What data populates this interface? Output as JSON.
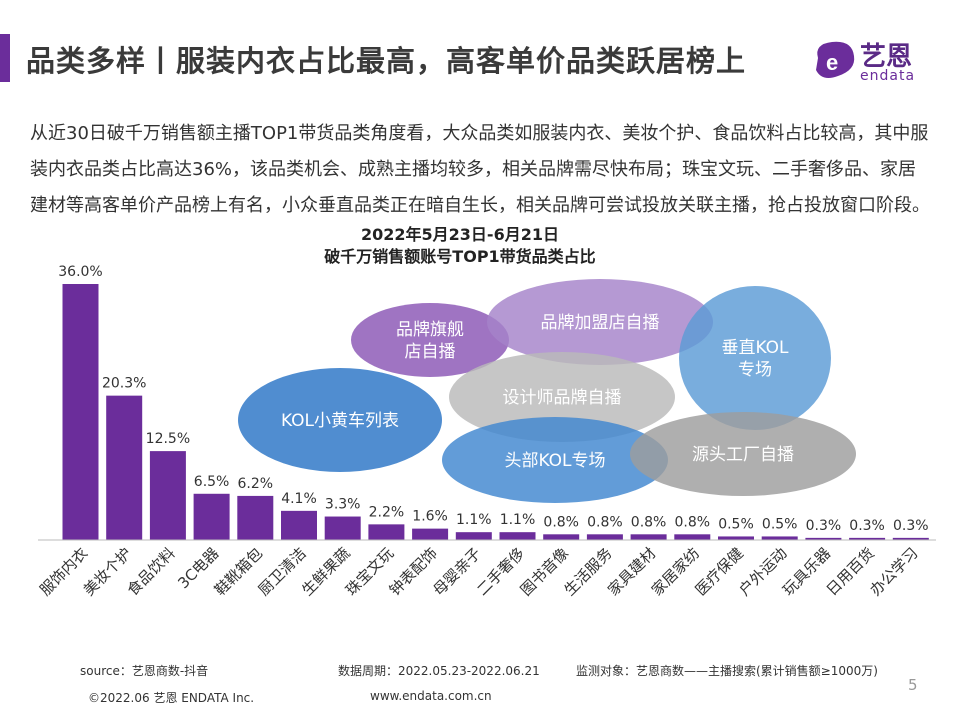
{
  "header": {
    "title": "品类多样丨服装内衣占比最高，高客单价品类跃居榜上",
    "logo_cn": "艺恩",
    "logo_en": "endata"
  },
  "paragraph": "从近30日破千万销售额主播TOP1带货品类角度看，大众品类如服装内衣、美妆个护、食品饮料占比较高，其中服装内衣品类占比高达36%，该品类机会、成熟主播均较多，相关品牌需尽快布局；珠宝文玩、二手奢侈品、家居建材等高客单价产品榜上有名，小众垂直品类正在暗自生长，相关品牌可尝试投放关联主播，抢占投放窗口阶段。",
  "chart_data": {
    "type": "bar",
    "title": "2022年5月23日-6月21日",
    "subtitle": "破千万销售额账号TOP1带货品类占比",
    "categories": [
      "服饰内衣",
      "美妆个护",
      "食品饮料",
      "3C电器",
      "鞋靴箱包",
      "厨卫清洁",
      "生鲜果蔬",
      "珠宝文玩",
      "钟表配饰",
      "母婴亲子",
      "二手奢侈",
      "图书音像",
      "生活服务",
      "家具建材",
      "家居家纺",
      "医疗保健",
      "户外运动",
      "玩具乐器",
      "日用百货",
      "办公学习"
    ],
    "values": [
      36.0,
      20.3,
      12.5,
      6.5,
      6.2,
      4.1,
      3.3,
      2.2,
      1.6,
      1.1,
      1.1,
      0.8,
      0.8,
      0.8,
      0.8,
      0.5,
      0.5,
      0.3,
      0.3,
      0.3
    ],
    "labels": [
      "36.0%",
      "20.3%",
      "12.5%",
      "6.5%",
      "6.2%",
      "4.1%",
      "3.3%",
      "2.2%",
      "1.6%",
      "1.1%",
      "1.1%",
      "0.8%",
      "0.8%",
      "0.8%",
      "0.8%",
      "0.5%",
      "0.5%",
      "0.3%",
      "0.3%",
      "0.3%"
    ],
    "bar_color": "#6b2d9b",
    "ylim": [
      0,
      36
    ]
  },
  "bubbles": [
    {
      "name": "bubble-brand-flagship",
      "label": "品牌旗舰\n店自播",
      "color": "#8a55b5"
    },
    {
      "name": "bubble-brand-franchise",
      "label": "品牌加盟店自播",
      "color": "#a582c9"
    },
    {
      "name": "bubble-vertical-kol",
      "label": "垂直KOL\n专场",
      "color": "#5b9bd5"
    },
    {
      "name": "bubble-kol-cart",
      "label": "KOL小黄车列表",
      "color": "#2a74c6"
    },
    {
      "name": "bubble-designer",
      "label": "设计师品牌自播",
      "color": "#b9b9b9"
    },
    {
      "name": "bubble-top-kol",
      "label": "头部KOL专场",
      "color": "#3f86cf"
    },
    {
      "name": "bubble-factory",
      "label": "源头工厂自播",
      "color": "#9e9e9e"
    }
  ],
  "footer": {
    "source": "source：艺恩商数-抖音",
    "period": "数据周期：2022.05.23-2022.06.21",
    "monitor": "监测对象：艺恩商数——主播搜索(累计销售额≥1000万)",
    "copyright": "©2022.06 艺恩 ENDATA Inc.",
    "website": "www.endata.com.cn",
    "page": "5"
  }
}
